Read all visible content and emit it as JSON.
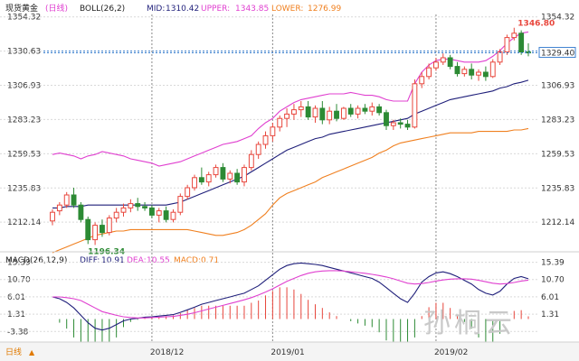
{
  "header": {
    "instrument": "现货黄金",
    "period": "(日线)",
    "indicator": "BOLL(26,2)",
    "mid_label": "MID:",
    "mid_value": "1310.42",
    "upper_label": "UPPER:",
    "upper_value": "1343.85",
    "lower_label": "LOWER:",
    "lower_value": "1276.99"
  },
  "macd_header": {
    "indicator": "MACD(26,12,9)",
    "diff_label": "DIFF:",
    "diff_value": "10.91",
    "dea_label": "DEA:",
    "dea_value": "10.55",
    "macd_label": "MACD:",
    "macd_value": "0.71"
  },
  "price_axis": [
    "1354.32",
    "1330.63",
    "1306.93",
    "1283.23",
    "1259.53",
    "1235.83",
    "1212.14"
  ],
  "macd_axis": [
    "15.39",
    "10.70",
    "6.01",
    "1.31",
    "-3.38"
  ],
  "macd_right_axis": [
    "15.39",
    "10.70",
    "6.01",
    "1.31"
  ],
  "x_labels": [
    "2018/12",
    "2019/01",
    "2019/02"
  ],
  "high_marker": "1346.80",
  "low_marker": "1196.34",
  "last_price": "1329.40",
  "period_selector": "日线",
  "watermark": "孙桐云",
  "colors": {
    "up": "#e8463c",
    "down": "#2c8a34",
    "mid": "#1f1f7a",
    "upper": "#e040d0",
    "lower": "#f08020",
    "diff": "#1f1f7a",
    "dea": "#e040d0",
    "last_line": "#3a7fd0"
  },
  "chart_data": {
    "type": "candlestick",
    "candles": [
      [
        1213.0,
        1221.0,
        1210.0,
        1219.0
      ],
      [
        1220.0,
        1226.0,
        1217.0,
        1224.0
      ],
      [
        1224.0,
        1233.0,
        1222.0,
        1231.0
      ],
      [
        1231.0,
        1236.0,
        1222.0,
        1224.0
      ],
      [
        1224.0,
        1226.0,
        1212.0,
        1214.0
      ],
      [
        1214.0,
        1216.0,
        1197.0,
        1200.0
      ],
      [
        1200.0,
        1212.0,
        1196.34,
        1210.0
      ],
      [
        1210.0,
        1214.0,
        1202.0,
        1205.0
      ],
      [
        1205.0,
        1217.0,
        1203.0,
        1215.0
      ],
      [
        1215.0,
        1222.0,
        1212.0,
        1219.0
      ],
      [
        1219.0,
        1225.0,
        1216.0,
        1222.0
      ],
      [
        1222.0,
        1228.0,
        1219.0,
        1225.0
      ],
      [
        1225.0,
        1229.0,
        1220.0,
        1223.0
      ],
      [
        1223.0,
        1226.0,
        1220.0,
        1222.0
      ],
      [
        1222.0,
        1224.0,
        1215.0,
        1217.0
      ],
      [
        1217.0,
        1222.0,
        1212.0,
        1220.0
      ],
      [
        1220.0,
        1223.0,
        1212.0,
        1214.0
      ],
      [
        1214.0,
        1221.0,
        1212.0,
        1219.0
      ],
      [
        1219.0,
        1232.0,
        1217.0,
        1230.0
      ],
      [
        1230.0,
        1238.0,
        1228.0,
        1236.0
      ],
      [
        1236.0,
        1245.0,
        1234.0,
        1243.0
      ],
      [
        1243.0,
        1250.0,
        1238.0,
        1240.0
      ],
      [
        1240.0,
        1247.0,
        1237.0,
        1245.0
      ],
      [
        1245.0,
        1252.0,
        1243.0,
        1250.0
      ],
      [
        1250.0,
        1253.0,
        1240.0,
        1242.0
      ],
      [
        1242.0,
        1248.0,
        1239.0,
        1246.0
      ],
      [
        1246.0,
        1249.0,
        1238.0,
        1240.0
      ],
      [
        1240.0,
        1252.0,
        1237.0,
        1250.0
      ],
      [
        1250.0,
        1262.0,
        1248.0,
        1259.0
      ],
      [
        1259.0,
        1268.0,
        1256.0,
        1266.0
      ],
      [
        1266.0,
        1275.0,
        1263.0,
        1272.0
      ],
      [
        1272.0,
        1281.0,
        1268.0,
        1278.0
      ],
      [
        1278.0,
        1286.0,
        1275.0,
        1284.0
      ],
      [
        1284.0,
        1291.0,
        1278.0,
        1287.0
      ],
      [
        1287.0,
        1294.0,
        1283.0,
        1290.0
      ],
      [
        1290.0,
        1296.0,
        1285.0,
        1292.0
      ],
      [
        1292.0,
        1296.0,
        1283.0,
        1285.0
      ],
      [
        1285.0,
        1293.0,
        1281.0,
        1291.0
      ],
      [
        1291.0,
        1296.0,
        1280.0,
        1283.0
      ],
      [
        1283.0,
        1292.0,
        1280.0,
        1289.0
      ],
      [
        1289.0,
        1294.0,
        1282.0,
        1284.0
      ],
      [
        1284.0,
        1292.0,
        1283.0,
        1291.0
      ],
      [
        1291.0,
        1294.0,
        1285.0,
        1287.0
      ],
      [
        1287.0,
        1293.0,
        1284.0,
        1291.0
      ],
      [
        1291.0,
        1294.0,
        1287.0,
        1289.0
      ],
      [
        1289.0,
        1295.0,
        1286.0,
        1292.0
      ],
      [
        1292.0,
        1294.0,
        1286.0,
        1288.0
      ],
      [
        1288.0,
        1290.0,
        1276.0,
        1279.0
      ],
      [
        1279.0,
        1283.0,
        1276.0,
        1281.0
      ],
      [
        1281.0,
        1284.0,
        1277.0,
        1280.0
      ],
      [
        1280.0,
        1283.0,
        1276.0,
        1278.0
      ],
      [
        1278.0,
        1311.0,
        1277.0,
        1308.0
      ],
      [
        1308.0,
        1316.0,
        1305.0,
        1313.0
      ],
      [
        1313.0,
        1322.0,
        1311.0,
        1319.0
      ],
      [
        1319.0,
        1326.0,
        1317.0,
        1323.0
      ],
      [
        1323.0,
        1329.0,
        1321.0,
        1326.0
      ],
      [
        1326.0,
        1328.0,
        1318.0,
        1320.0
      ],
      [
        1320.0,
        1323.0,
        1313.0,
        1315.0
      ],
      [
        1315.0,
        1320.0,
        1313.0,
        1318.0
      ],
      [
        1318.0,
        1322.0,
        1311.0,
        1314.0
      ],
      [
        1314.0,
        1318.0,
        1310.0,
        1316.0
      ],
      [
        1316.0,
        1320.0,
        1310.0,
        1313.0
      ],
      [
        1313.0,
        1325.0,
        1312.0,
        1323.0
      ],
      [
        1323.0,
        1332.0,
        1321.0,
        1330.0
      ],
      [
        1330.0,
        1342.0,
        1328.0,
        1340.0
      ],
      [
        1340.0,
        1346.8,
        1338.0,
        1343.0
      ],
      [
        1343.0,
        1345.0,
        1328.0,
        1330.0
      ],
      [
        1330.0,
        1336.0,
        1327.0,
        1329.4
      ]
    ],
    "x_tick_indices": [
      14,
      31,
      54
    ],
    "upper": [
      1259,
      1260,
      1259,
      1258,
      1256,
      1258,
      1259,
      1261,
      1260,
      1259,
      1258,
      1256,
      1255,
      1254,
      1253,
      1251,
      1252,
      1253,
      1254,
      1256,
      1258,
      1260,
      1262,
      1264,
      1266,
      1267,
      1268,
      1270,
      1272,
      1277,
      1281,
      1284,
      1289,
      1292,
      1295,
      1297,
      1298,
      1299,
      1300,
      1301,
      1301,
      1301,
      1302,
      1301,
      1300,
      1300,
      1299,
      1297,
      1296,
      1296,
      1296,
      1308,
      1316,
      1321,
      1324,
      1325,
      1325,
      1324,
      1323,
      1323,
      1323,
      1324,
      1327,
      1331,
      1336,
      1340,
      1343,
      1343.85
    ],
    "mid": [
      1222,
      1222,
      1223,
      1223,
      1223,
      1224,
      1224,
      1224,
      1224,
      1224,
      1224,
      1224,
      1224,
      1224,
      1224,
      1224,
      1224,
      1225,
      1226,
      1228,
      1230,
      1232,
      1234,
      1236,
      1238,
      1240,
      1242,
      1244,
      1247,
      1250,
      1253,
      1256,
      1259,
      1262,
      1264,
      1266,
      1268,
      1270,
      1271,
      1273,
      1274,
      1275,
      1276,
      1277,
      1278,
      1279,
      1280,
      1281,
      1282,
      1283,
      1284,
      1287,
      1289,
      1291,
      1293,
      1295,
      1297,
      1298,
      1299,
      1300,
      1301,
      1302,
      1303,
      1305,
      1306,
      1308,
      1309,
      1310.42
    ],
    "lower": [
      1191,
      1193,
      1195,
      1197,
      1199,
      1201,
      1203,
      1204,
      1205,
      1206,
      1206,
      1207,
      1207,
      1207,
      1207,
      1207,
      1207,
      1207,
      1207,
      1207,
      1206,
      1205,
      1204,
      1203,
      1203,
      1204,
      1205,
      1207,
      1210,
      1214,
      1218,
      1224,
      1229,
      1232,
      1234,
      1236,
      1238,
      1240,
      1243,
      1245,
      1247,
      1249,
      1251,
      1253,
      1255,
      1257,
      1260,
      1262,
      1265,
      1267,
      1268,
      1269,
      1270,
      1271,
      1272,
      1273,
      1274,
      1274,
      1274,
      1274,
      1275,
      1275,
      1275,
      1275,
      1275,
      1276,
      1276,
      1276.99
    ],
    "diff": [
      6.0,
      5.5,
      4.5,
      3.0,
      1.0,
      -1.0,
      -2.5,
      -3.0,
      -2.5,
      -1.5,
      -0.5,
      0.0,
      0.2,
      0.5,
      0.6,
      0.8,
      1.0,
      1.2,
      1.8,
      2.5,
      3.2,
      4.0,
      4.5,
      5.0,
      5.5,
      6.0,
      6.5,
      7.0,
      8.0,
      9.0,
      10.5,
      12.0,
      13.5,
      14.5,
      15.0,
      15.2,
      15.0,
      14.8,
      14.5,
      14.0,
      13.5,
      13.0,
      12.5,
      12.0,
      11.5,
      11.0,
      10.0,
      8.5,
      7.0,
      5.5,
      4.5,
      7.0,
      10.0,
      11.5,
      12.5,
      12.8,
      12.3,
      11.5,
      10.5,
      9.5,
      8.0,
      7.0,
      6.5,
      7.5,
      9.5,
      11.0,
      11.5,
      10.91
    ],
    "dea": [
      6.0,
      6.0,
      5.8,
      5.5,
      5.0,
      4.0,
      3.0,
      2.0,
      1.5,
      1.0,
      0.6,
      0.4,
      0.3,
      0.3,
      0.4,
      0.5,
      0.6,
      0.7,
      1.0,
      1.3,
      1.7,
      2.2,
      2.7,
      3.2,
      3.7,
      4.2,
      4.7,
      5.2,
      5.8,
      6.5,
      7.3,
      8.2,
      9.2,
      10.2,
      11.0,
      11.8,
      12.4,
      12.8,
      13.0,
      13.1,
      13.1,
      13.0,
      12.8,
      12.6,
      12.4,
      12.1,
      11.8,
      11.4,
      10.9,
      10.3,
      9.7,
      9.5,
      9.6,
      9.9,
      10.3,
      10.6,
      10.8,
      10.9,
      10.9,
      10.8,
      10.5,
      10.1,
      9.7,
      9.5,
      9.6,
      9.9,
      10.3,
      10.55
    ],
    "ylim_price": [
      1196,
      1356
    ],
    "ylim_macd": [
      -6,
      17
    ]
  }
}
